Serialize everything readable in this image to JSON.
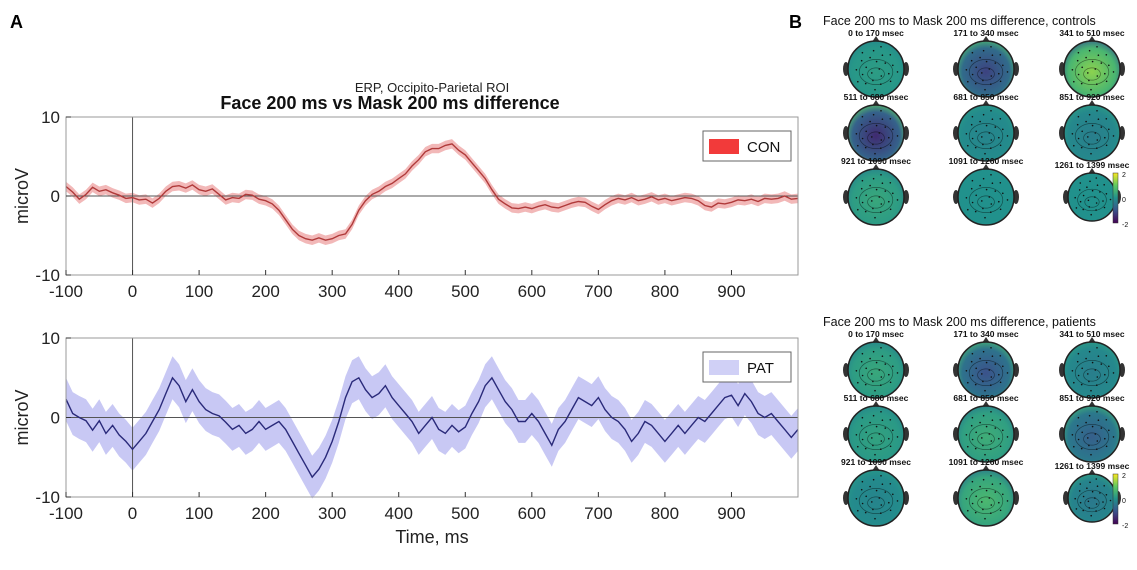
{
  "figure": {
    "panel_a_label": "A",
    "panel_b_label": "B",
    "colors": {
      "con_line": "#b03a3a",
      "con_band": "#f2b8b8",
      "con_legend": "#f23a3a",
      "pat_line": "#2a2a7a",
      "pat_band": "#c8c8f4",
      "pat_legend": "#d0d0f6"
    }
  },
  "chart_data": [
    {
      "type": "line",
      "title": "Face 200 ms vs Mask 200 ms difference",
      "subtitle": "ERP, Occipito-Parietal ROI",
      "ylabel": "microV",
      "xlabel": "",
      "xlim": [
        -100,
        1000
      ],
      "ylim": [
        -10,
        10
      ],
      "xticks": [
        -100,
        0,
        100,
        200,
        300,
        400,
        500,
        600,
        700,
        800,
        900
      ],
      "yticks": [
        -10,
        0,
        10
      ],
      "grid": false,
      "legend": "top-right",
      "series": [
        {
          "name": "CON",
          "band_halfwidth": 0.6,
          "x": [
            -100,
            -90,
            -80,
            -70,
            -60,
            -50,
            -40,
            -30,
            -20,
            -10,
            0,
            10,
            20,
            30,
            40,
            50,
            60,
            70,
            80,
            90,
            100,
            110,
            120,
            130,
            140,
            150,
            160,
            170,
            180,
            190,
            200,
            210,
            220,
            230,
            240,
            250,
            260,
            270,
            280,
            290,
            300,
            310,
            320,
            330,
            340,
            350,
            360,
            370,
            380,
            390,
            400,
            410,
            420,
            430,
            440,
            450,
            460,
            470,
            480,
            490,
            500,
            510,
            520,
            530,
            540,
            550,
            560,
            570,
            580,
            590,
            600,
            610,
            620,
            630,
            640,
            650,
            660,
            670,
            680,
            690,
            700,
            710,
            720,
            730,
            740,
            750,
            760,
            770,
            780,
            790,
            800,
            810,
            820,
            830,
            840,
            850,
            860,
            870,
            880,
            890,
            900,
            910,
            920,
            930,
            940,
            950,
            960,
            970,
            980,
            990,
            1000
          ],
          "values": [
            1.2,
            0.5,
            -0.4,
            0.2,
            1.1,
            0.6,
            0.8,
            0.4,
            0.1,
            -0.3,
            -0.2,
            -0.5,
            -0.4,
            -0.9,
            -0.3,
            0.6,
            1.2,
            1.3,
            1.0,
            1.4,
            0.8,
            0.6,
            0.9,
            0.2,
            -0.5,
            -0.2,
            -0.3,
            0.2,
            0.1,
            -0.4,
            -0.6,
            -1.0,
            -1.8,
            -3.0,
            -4.2,
            -5.0,
            -5.4,
            -5.6,
            -5.3,
            -5.6,
            -5.4,
            -5.0,
            -4.8,
            -3.6,
            -1.8,
            -0.6,
            0.2,
            0.6,
            1.2,
            1.6,
            2.2,
            2.8,
            3.8,
            4.6,
            5.6,
            6.0,
            6.0,
            6.4,
            6.6,
            5.8,
            5.2,
            4.2,
            3.2,
            2.2,
            0.8,
            -0.4,
            -1.0,
            -1.5,
            -1.6,
            -1.4,
            -1.6,
            -1.3,
            -1.1,
            -1.4,
            -1.5,
            -1.2,
            -0.9,
            -0.7,
            -0.8,
            -1.3,
            -1.7,
            -1.1,
            -0.6,
            -0.3,
            -0.5,
            -0.2,
            -0.6,
            -0.4,
            -0.1,
            -0.5,
            -0.3,
            -0.6,
            -0.4,
            -0.2,
            -0.3,
            -0.6,
            -1.2,
            -1.4,
            -0.9,
            -1.0,
            -0.8,
            -0.5,
            -0.6,
            -0.4,
            -0.7,
            -0.3,
            -0.4,
            -0.3,
            0.0,
            -0.4,
            -0.3
          ]
        }
      ]
    },
    {
      "type": "line",
      "title": "",
      "subtitle": "",
      "ylabel": "microV",
      "xlabel": "Time, ms",
      "xlim": [
        -100,
        1000
      ],
      "ylim": [
        -10,
        10
      ],
      "xticks": [
        -100,
        0,
        100,
        200,
        300,
        400,
        500,
        600,
        700,
        800,
        900
      ],
      "yticks": [
        -10,
        0,
        10
      ],
      "grid": false,
      "legend": "top-right",
      "series": [
        {
          "name": "PAT",
          "band_halfwidth": 2.7,
          "x": [
            -100,
            -90,
            -80,
            -70,
            -60,
            -50,
            -40,
            -30,
            -20,
            -10,
            0,
            10,
            20,
            30,
            40,
            50,
            60,
            70,
            80,
            90,
            100,
            110,
            120,
            130,
            140,
            150,
            160,
            170,
            180,
            190,
            200,
            210,
            220,
            230,
            240,
            250,
            260,
            270,
            280,
            290,
            300,
            310,
            320,
            330,
            340,
            350,
            360,
            370,
            380,
            390,
            400,
            410,
            420,
            430,
            440,
            450,
            460,
            470,
            480,
            490,
            500,
            510,
            520,
            530,
            540,
            550,
            560,
            570,
            580,
            590,
            600,
            610,
            620,
            630,
            640,
            650,
            660,
            670,
            680,
            690,
            700,
            710,
            720,
            730,
            740,
            750,
            760,
            770,
            780,
            790,
            800,
            810,
            820,
            830,
            840,
            850,
            860,
            870,
            880,
            890,
            900,
            910,
            920,
            930,
            940,
            950,
            960,
            970,
            980,
            990,
            1000
          ],
          "values": [
            2.3,
            0.5,
            0.0,
            -0.4,
            -1.6,
            -0.4,
            -2.0,
            -1.0,
            -2.2,
            -3.0,
            -4.0,
            -3.0,
            -2.0,
            -0.5,
            1.0,
            3.0,
            5.0,
            4.0,
            2.0,
            3.5,
            2.0,
            1.0,
            0.5,
            0.2,
            -0.6,
            -1.5,
            -1.0,
            -2.0,
            -1.5,
            -0.5,
            -1.5,
            -1.0,
            -0.5,
            -1.5,
            -3.0,
            -4.5,
            -6.0,
            -7.5,
            -6.5,
            -5.0,
            -3.0,
            -0.5,
            2.5,
            4.5,
            5.0,
            3.5,
            2.5,
            3.0,
            4.0,
            2.5,
            1.5,
            0.5,
            -0.5,
            -2.0,
            -1.0,
            0.0,
            -1.5,
            -2.0,
            -1.0,
            -1.8,
            -1.2,
            0.5,
            2.0,
            4.0,
            5.0,
            3.5,
            2.0,
            1.0,
            -0.5,
            -0.5,
            0.5,
            -0.5,
            -2.0,
            -3.5,
            -1.5,
            -0.5,
            1.0,
            2.5,
            2.0,
            1.5,
            2.5,
            1.0,
            0.0,
            -0.5,
            -1.5,
            -3.0,
            -2.0,
            -0.5,
            -1.0,
            -2.0,
            -3.0,
            -2.0,
            -1.0,
            -2.0,
            -1.0,
            0.0,
            -0.5,
            0.5,
            1.5,
            2.5,
            2.8,
            1.5,
            3.0,
            2.0,
            0.5,
            0.0,
            0.5,
            -0.5,
            -1.5,
            -2.5,
            -1.5
          ]
        }
      ]
    }
  ],
  "topomaps": [
    {
      "title": "Face 200 ms to Mask 200 ms difference, controls",
      "colorbar_ticks": [
        "2",
        "0",
        "-2"
      ],
      "maps": [
        {
          "label": "0 to 170 msec",
          "value": 0.2
        },
        {
          "label": "171 to 340 msec",
          "value": -1.2
        },
        {
          "label": "341 to 510 msec",
          "value": 1.3
        },
        {
          "label": "511 to 680 msec",
          "value": -1.5
        },
        {
          "label": "681 to 850 msec",
          "value": -0.2
        },
        {
          "label": "851 to 920 msec",
          "value": -0.3
        },
        {
          "label": "921 to 1090 msec",
          "value": 0.4
        },
        {
          "label": "1091 to 1260 msec",
          "value": 0.0
        },
        {
          "label": "1261 to 1399 msec",
          "value": 0.0
        }
      ]
    },
    {
      "title": "Face 200 ms to Mask 200 ms difference, patients",
      "colorbar_ticks": [
        "2",
        "0",
        "-2"
      ],
      "maps": [
        {
          "label": "0 to 170 msec",
          "value": 0.4
        },
        {
          "label": "171 to 340 msec",
          "value": -1.0
        },
        {
          "label": "341 to 510 msec",
          "value": -0.3
        },
        {
          "label": "511 to 680 msec",
          "value": 0.3
        },
        {
          "label": "681 to 850 msec",
          "value": 0.5
        },
        {
          "label": "851 to 920 msec",
          "value": -0.8
        },
        {
          "label": "921 to 1090 msec",
          "value": -0.2
        },
        {
          "label": "1091 to 1260 msec",
          "value": 0.7
        },
        {
          "label": "1261 to 1399 msec",
          "value": -0.4
        }
      ]
    }
  ]
}
